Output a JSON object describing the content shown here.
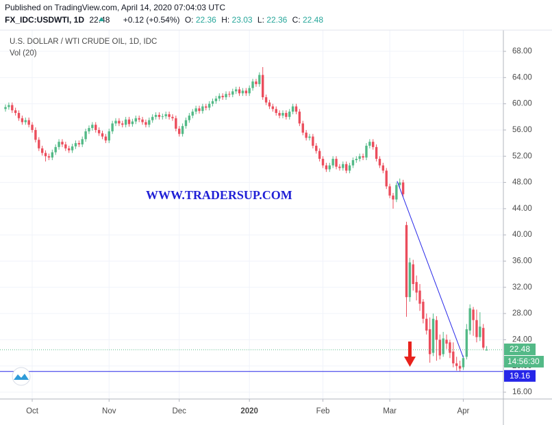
{
  "published": "Published on TradingView.com, April 14, 2020 07:04:03 UTC",
  "symbol": "FX_IDC:USDWTI, 1D",
  "change": "+0.12 (+0.54%)",
  "ohlc_labels": [
    "O:",
    "H:",
    "L:",
    "C:"
  ],
  "watermark": "WWW.TRADERSUP.COM",
  "countdown": "14:56:30",
  "chart_data": {
    "type": "candlestick",
    "title": "U.S. DOLLAR / WTI CRUDE OIL, 1D, IDC",
    "subtitle": "Vol (20)",
    "up_color": "#53b987",
    "down_color": "#eb4d5c",
    "grid": true,
    "xlim": [
      0,
      149
    ],
    "xticks": [
      {
        "value": 8,
        "label": "Oct"
      },
      {
        "value": 31,
        "label": "Nov"
      },
      {
        "value": 52,
        "label": "Dec"
      },
      {
        "value": 73,
        "label": "2020"
      },
      {
        "value": 95,
        "label": "Feb"
      },
      {
        "value": 115,
        "label": "Mar"
      },
      {
        "value": 137,
        "label": "Apr"
      }
    ],
    "ylim": [
      14.96,
      71.24
    ],
    "yticks": [
      {
        "value": 16,
        "label": "16.00"
      },
      {
        "value": 20,
        "label": "20.00"
      },
      {
        "value": 24,
        "label": "24.00"
      },
      {
        "value": 28,
        "label": "28.00"
      },
      {
        "value": 32,
        "label": "32.00"
      },
      {
        "value": 36,
        "label": "36.00"
      },
      {
        "value": 40,
        "label": "40.00"
      },
      {
        "value": 44,
        "label": "44.00"
      },
      {
        "value": 48,
        "label": "48.00"
      },
      {
        "value": 52,
        "label": "52.00"
      },
      {
        "value": 56,
        "label": "56.00"
      },
      {
        "value": 60,
        "label": "60.00"
      },
      {
        "value": 64,
        "label": "64.00"
      },
      {
        "value": 68,
        "label": "68.00"
      }
    ],
    "hline": {
      "value": 19.16,
      "color": "#2626e8"
    },
    "trendline": {
      "x": [
        117.2,
        137
      ],
      "y": [
        48.2,
        21.3
      ],
      "color": "#2626e8"
    },
    "values": [
      [
        59.2,
        59.9,
        58.8,
        59.5
      ],
      [
        59.5,
        60.2,
        59.1,
        59.8
      ],
      [
        59.8,
        60.2,
        58.6,
        59.0
      ],
      [
        59.0,
        59.4,
        58.2,
        58.6
      ],
      [
        58.6,
        59.0,
        57.4,
        57.8
      ],
      [
        57.8,
        58.2,
        56.8,
        57.2
      ],
      [
        57.2,
        57.9,
        56.8,
        57.5
      ],
      [
        57.5,
        57.9,
        56.4,
        56.8
      ],
      [
        56.8,
        57.2,
        55.6,
        56.0
      ],
      [
        56.0,
        56.4,
        54.1,
        54.5
      ],
      [
        54.5,
        54.9,
        52.8,
        53.2
      ],
      [
        53.2,
        53.6,
        52.1,
        52.5
      ],
      [
        52.5,
        52.9,
        51.2,
        52.0
      ],
      [
        52.0,
        52.4,
        51.4,
        51.8
      ],
      [
        51.8,
        53.0,
        51.4,
        52.6
      ],
      [
        52.6,
        53.8,
        52.2,
        53.4
      ],
      [
        53.4,
        54.6,
        53.0,
        54.2
      ],
      [
        54.2,
        54.6,
        53.4,
        53.8
      ],
      [
        53.8,
        54.2,
        52.8,
        53.2
      ],
      [
        53.2,
        53.6,
        52.5,
        52.9
      ],
      [
        52.9,
        53.9,
        52.5,
        53.5
      ],
      [
        53.5,
        54.4,
        53.1,
        54.0
      ],
      [
        54.0,
        54.4,
        53.4,
        53.8
      ],
      [
        53.8,
        55.0,
        53.4,
        54.6
      ],
      [
        54.6,
        56.2,
        54.2,
        55.8
      ],
      [
        55.8,
        56.7,
        55.4,
        56.3
      ],
      [
        56.3,
        57.2,
        55.9,
        56.8
      ],
      [
        56.8,
        57.2,
        55.6,
        56.0
      ],
      [
        56.0,
        56.4,
        55.1,
        55.5
      ],
      [
        55.5,
        55.9,
        54.6,
        55.0
      ],
      [
        55.0,
        55.4,
        54.0,
        54.4
      ],
      [
        54.4,
        56.2,
        54.0,
        55.8
      ],
      [
        55.8,
        57.4,
        55.4,
        57.0
      ],
      [
        57.0,
        57.8,
        56.6,
        57.4
      ],
      [
        57.4,
        57.8,
        56.6,
        57.0
      ],
      [
        57.0,
        57.4,
        56.4,
        56.8
      ],
      [
        56.8,
        58.0,
        56.4,
        57.6
      ],
      [
        57.6,
        58.0,
        56.5,
        56.9
      ],
      [
        56.9,
        57.7,
        56.5,
        57.3
      ],
      [
        57.3,
        58.2,
        56.9,
        57.8
      ],
      [
        57.8,
        58.2,
        57.2,
        57.6
      ],
      [
        57.6,
        58.0,
        56.8,
        57.2
      ],
      [
        57.2,
        57.6,
        56.4,
        56.8
      ],
      [
        56.8,
        57.9,
        56.4,
        57.5
      ],
      [
        57.5,
        58.4,
        57.1,
        58.0
      ],
      [
        58.0,
        58.7,
        57.6,
        58.3
      ],
      [
        58.3,
        58.7,
        57.6,
        58.0
      ],
      [
        58.0,
        58.5,
        57.6,
        58.1
      ],
      [
        58.1,
        58.8,
        57.7,
        58.4
      ],
      [
        58.4,
        58.8,
        57.6,
        58.0
      ],
      [
        58.0,
        58.4,
        57.4,
        57.8
      ],
      [
        57.8,
        58.2,
        55.8,
        56.2
      ],
      [
        56.2,
        56.6,
        55.0,
        55.4
      ],
      [
        55.4,
        57.0,
        55.0,
        56.6
      ],
      [
        56.6,
        57.9,
        56.2,
        57.5
      ],
      [
        57.5,
        58.6,
        57.1,
        58.2
      ],
      [
        58.2,
        59.2,
        57.8,
        58.8
      ],
      [
        58.8,
        59.7,
        58.4,
        59.3
      ],
      [
        59.3,
        59.7,
        58.5,
        58.9
      ],
      [
        58.9,
        60.0,
        58.5,
        59.6
      ],
      [
        59.6,
        60.0,
        59.0,
        59.4
      ],
      [
        59.4,
        60.4,
        59.0,
        60.0
      ],
      [
        60.0,
        60.8,
        59.6,
        60.4
      ],
      [
        60.4,
        61.2,
        60.0,
        60.8
      ],
      [
        60.8,
        61.6,
        60.4,
        61.2
      ],
      [
        61.2,
        61.6,
        60.6,
        61.0
      ],
      [
        61.0,
        61.9,
        60.6,
        61.5
      ],
      [
        61.5,
        61.9,
        61.0,
        61.4
      ],
      [
        61.4,
        62.3,
        61.0,
        61.9
      ],
      [
        61.9,
        62.6,
        61.5,
        62.2
      ],
      [
        62.2,
        62.6,
        61.2,
        61.6
      ],
      [
        61.6,
        62.4,
        61.2,
        62.0
      ],
      [
        62.0,
        62.4,
        61.2,
        61.6
      ],
      [
        61.6,
        62.8,
        61.2,
        62.4
      ],
      [
        62.4,
        63.8,
        62.0,
        63.4
      ],
      [
        63.4,
        63.8,
        62.6,
        63.0
      ],
      [
        63.0,
        64.8,
        62.6,
        64.4
      ],
      [
        64.4,
        65.6,
        60.6,
        61.0
      ],
      [
        61.0,
        61.4,
        59.8,
        60.2
      ],
      [
        60.2,
        60.6,
        59.2,
        59.6
      ],
      [
        59.6,
        60.0,
        58.8,
        59.2
      ],
      [
        59.2,
        59.6,
        58.2,
        58.6
      ],
      [
        58.6,
        59.0,
        57.8,
        58.2
      ],
      [
        58.2,
        59.0,
        57.8,
        58.6
      ],
      [
        58.6,
        59.0,
        57.6,
        58.0
      ],
      [
        58.0,
        59.2,
        57.6,
        58.8
      ],
      [
        58.8,
        60.0,
        58.4,
        59.6
      ],
      [
        59.6,
        60.0,
        58.4,
        58.8
      ],
      [
        58.8,
        59.2,
        56.6,
        57.0
      ],
      [
        57.0,
        57.4,
        55.2,
        55.6
      ],
      [
        55.6,
        56.0,
        54.4,
        54.8
      ],
      [
        54.8,
        55.4,
        54.4,
        55.0
      ],
      [
        55.0,
        55.4,
        53.2,
        53.6
      ],
      [
        53.6,
        54.0,
        52.4,
        52.8
      ],
      [
        52.8,
        53.2,
        51.2,
        51.6
      ],
      [
        51.6,
        52.0,
        50.2,
        50.6
      ],
      [
        50.6,
        51.0,
        49.6,
        50.0
      ],
      [
        50.0,
        51.0,
        49.6,
        50.6
      ],
      [
        50.6,
        52.0,
        50.2,
        51.6
      ],
      [
        51.6,
        52.0,
        50.0,
        50.4
      ],
      [
        50.4,
        50.8,
        49.8,
        50.2
      ],
      [
        50.2,
        51.2,
        49.8,
        50.8
      ],
      [
        50.8,
        51.2,
        49.4,
        49.8
      ],
      [
        49.8,
        51.0,
        49.4,
        50.6
      ],
      [
        50.6,
        51.8,
        50.2,
        51.4
      ],
      [
        51.4,
        52.0,
        51.0,
        51.6
      ],
      [
        51.6,
        52.4,
        51.2,
        52.0
      ],
      [
        52.0,
        52.4,
        51.4,
        51.8
      ],
      [
        51.8,
        54.0,
        51.4,
        53.6
      ],
      [
        53.6,
        54.6,
        53.2,
        54.2
      ],
      [
        54.2,
        54.6,
        53.0,
        53.4
      ],
      [
        53.4,
        53.8,
        51.2,
        51.6
      ],
      [
        51.6,
        52.0,
        50.2,
        50.6
      ],
      [
        50.6,
        51.0,
        49.4,
        49.8
      ],
      [
        49.8,
        50.2,
        47.0,
        47.4
      ],
      [
        47.4,
        47.8,
        45.6,
        46.0
      ],
      [
        46.0,
        46.4,
        44.0,
        45.4
      ],
      [
        45.4,
        48.0,
        45.0,
        47.6
      ],
      [
        47.6,
        48.6,
        47.2,
        48.0
      ],
      [
        48.0,
        48.4,
        45.8,
        46.2
      ],
      [
        41.5,
        42,
        27.5,
        30.5
      ],
      [
        30.5,
        36.5,
        29.8,
        35.8
      ],
      [
        35.5,
        36.2,
        31.5,
        32.5
      ],
      [
        32.8,
        33.8,
        30,
        31.2
      ],
      [
        31.5,
        32.5,
        28.4,
        29.5
      ],
      [
        29.8,
        30.2,
        26.5,
        27.2
      ],
      [
        27.2,
        28,
        24.8,
        25.4
      ],
      [
        25.6,
        27.4,
        20.5,
        21.8
      ],
      [
        22,
        28,
        21.5,
        27.2
      ],
      [
        27,
        27.6,
        20.8,
        24
      ],
      [
        24,
        24.8,
        21,
        21.6
      ],
      [
        21.8,
        25.2,
        21.4,
        24.2
      ],
      [
        24,
        24.8,
        22.6,
        23.4
      ],
      [
        23.6,
        24,
        21.2,
        22
      ],
      [
        22.2,
        23.6,
        19.8,
        20.4
      ],
      [
        20.4,
        21.4,
        19.3,
        20
      ],
      [
        20,
        20.8,
        19.2,
        19.6
      ],
      [
        19.8,
        21.6,
        19.4,
        21.2
      ],
      [
        21.4,
        26.4,
        21,
        25.6
      ],
      [
        25.4,
        29.4,
        24.8,
        28.8
      ],
      [
        28.6,
        29,
        24.6,
        27
      ],
      [
        27,
        28.6,
        23.6,
        24.4
      ],
      [
        24.4,
        28.2,
        23.8,
        26
      ],
      [
        25.8,
        26.4,
        22.4,
        22.8
      ],
      [
        22.36,
        23.03,
        22.36,
        22.48
      ]
    ]
  }
}
